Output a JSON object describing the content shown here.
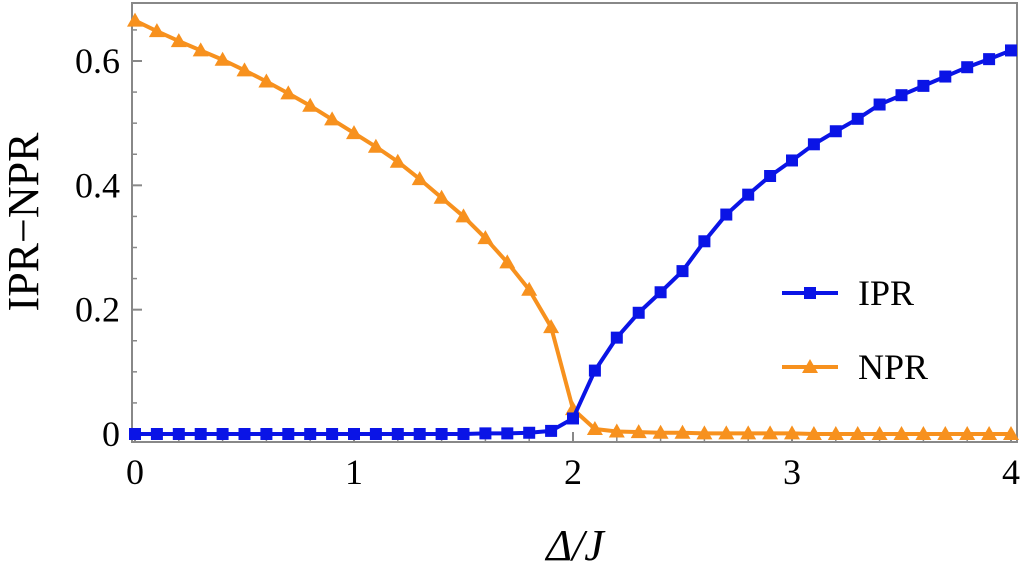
{
  "chart_data": {
    "type": "line",
    "xlabel": "Δ/J",
    "ylabel": "IPR−NPR",
    "xlim": [
      0,
      4
    ],
    "ylim": [
      -0.012,
      0.7
    ],
    "grid": false,
    "legend_position": "right",
    "x_ticks": [
      {
        "value": 0,
        "label": "0"
      },
      {
        "value": 1,
        "label": "1"
      },
      {
        "value": 2,
        "label": "2"
      },
      {
        "value": 3,
        "label": "3"
      },
      {
        "value": 4,
        "label": "4"
      }
    ],
    "y_ticks": [
      {
        "value": 0,
        "label": "0"
      },
      {
        "value": 0.2,
        "label": "0.2"
      },
      {
        "value": 0.4,
        "label": "0.4"
      },
      {
        "value": 0.6,
        "label": "0.6"
      }
    ],
    "x": [
      0,
      0.1,
      0.2,
      0.3,
      0.4,
      0.5,
      0.6,
      0.7,
      0.8,
      0.9,
      1.0,
      1.1,
      1.2,
      1.3,
      1.4,
      1.5,
      1.6,
      1.7,
      1.8,
      1.9,
      2.0,
      2.1,
      2.2,
      2.3,
      2.4,
      2.5,
      2.6,
      2.7,
      2.8,
      2.9,
      3.0,
      3.1,
      3.2,
      3.3,
      3.4,
      3.5,
      3.6,
      3.7,
      3.8,
      3.9,
      4.0
    ],
    "series": [
      {
        "name": "IPR",
        "color": "#0a14e6",
        "marker": "square",
        "values": [
          0.0,
          0.0,
          0.0,
          0.0,
          0.0,
          0.0,
          0.0,
          0.0,
          0.0,
          0.0,
          0.0,
          0.0,
          0.0,
          0.0,
          0.0,
          0.0,
          0.001,
          0.001,
          0.002,
          0.005,
          0.025,
          0.102,
          0.155,
          0.195,
          0.228,
          0.262,
          0.31,
          0.353,
          0.385,
          0.415,
          0.44,
          0.466,
          0.487,
          0.507,
          0.53,
          0.545,
          0.56,
          0.575,
          0.59,
          0.603,
          0.617
        ]
      },
      {
        "name": "NPR",
        "color": "#f7911e",
        "marker": "triangle",
        "values": [
          0.665,
          0.648,
          0.632,
          0.617,
          0.602,
          0.585,
          0.567,
          0.548,
          0.528,
          0.506,
          0.484,
          0.462,
          0.438,
          0.41,
          0.38,
          0.35,
          0.315,
          0.276,
          0.232,
          0.172,
          0.04,
          0.008,
          0.004,
          0.003,
          0.002,
          0.002,
          0.001,
          0.001,
          0.001,
          0.001,
          0.001,
          0.0,
          0.0,
          0.0,
          0.0,
          0.0,
          0.0,
          0.0,
          0.0,
          0.0,
          0.0
        ]
      }
    ]
  }
}
